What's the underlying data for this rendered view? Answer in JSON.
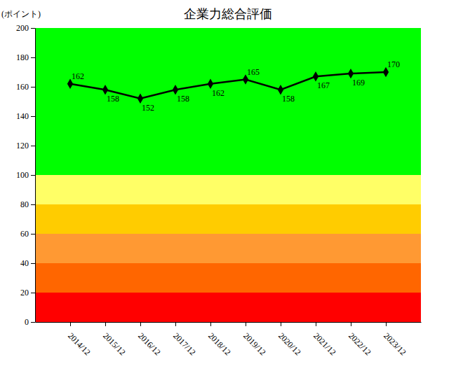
{
  "chart_data": {
    "type": "line",
    "title": "企業力総合評価",
    "y_label": "(ポイント)",
    "categories": [
      "2014/12",
      "2015/12",
      "2016/12",
      "2017/12",
      "2018/12",
      "2019/12",
      "2020/12",
      "2021/12",
      "2022/12",
      "2023/12"
    ],
    "values": [
      162,
      158,
      152,
      158,
      162,
      165,
      158,
      167,
      169,
      170
    ],
    "color": "#000000",
    "marker": "diamond",
    "line_style": "solid",
    "data_labels": true,
    "ylim": [
      0,
      200
    ],
    "yticks": [
      0,
      20,
      40,
      60,
      80,
      100,
      120,
      140,
      160,
      180,
      200
    ],
    "bands": [
      {
        "from": 0,
        "to": 20,
        "color": "#ff0000"
      },
      {
        "from": 20,
        "to": 40,
        "color": "#ff6600"
      },
      {
        "from": 40,
        "to": 60,
        "color": "#ff9933"
      },
      {
        "from": 60,
        "to": 80,
        "color": "#ffcc00"
      },
      {
        "from": 80,
        "to": 100,
        "color": "#ffff66"
      },
      {
        "from": 100,
        "to": 200,
        "color": "#00ff00"
      }
    ]
  }
}
